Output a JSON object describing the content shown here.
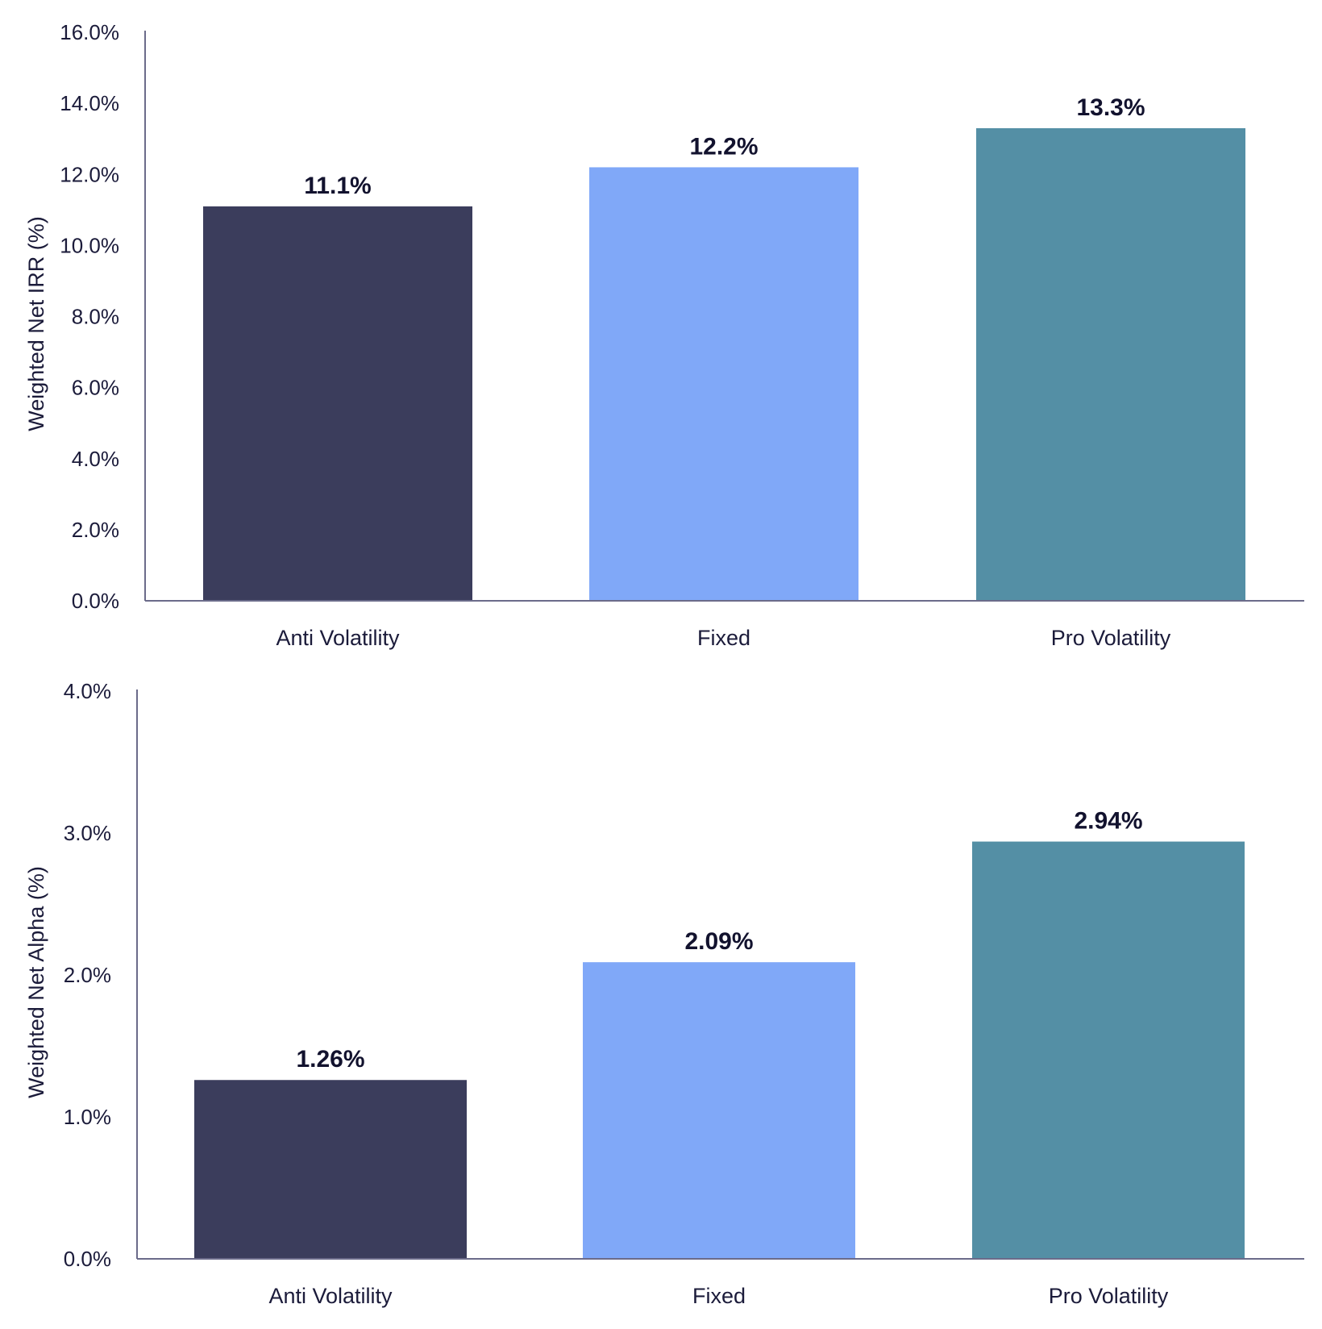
{
  "chart_data": [
    {
      "type": "bar",
      "categories": [
        "Anti Volatility",
        "Fixed",
        "Pro Volatility"
      ],
      "values": [
        11.1,
        12.2,
        13.3
      ],
      "data_labels": [
        "11.1%",
        "12.2%",
        "13.3%"
      ],
      "colors": [
        "#3b3d5c",
        "#80a8f8",
        "#548fa5"
      ],
      "title": "",
      "xlabel": "",
      "ylabel": "Weighted Net IRR (%)",
      "ylim": [
        0,
        16
      ],
      "yticks": [
        0,
        2,
        4,
        6,
        8,
        10,
        12,
        14,
        16
      ],
      "ytick_labels": [
        "0.0%",
        "2.0%",
        "4.0%",
        "6.0%",
        "8.0%",
        "10.0%",
        "12.0%",
        "14.0%",
        "16.0%"
      ],
      "grid": false,
      "legend": "none",
      "axis_color": "#6b6b8a"
    },
    {
      "type": "bar",
      "categories": [
        "Anti Volatility",
        "Fixed",
        "Pro Volatility"
      ],
      "values": [
        1.26,
        2.09,
        2.94
      ],
      "data_labels": [
        "1.26%",
        "2.09%",
        "2.94%"
      ],
      "colors": [
        "#3b3d5c",
        "#80a8f8",
        "#548fa5"
      ],
      "title": "",
      "xlabel": "",
      "ylabel": "Weighted Net Alpha (%)",
      "ylim": [
        0,
        4
      ],
      "yticks": [
        0,
        1,
        2,
        3,
        4
      ],
      "ytick_labels": [
        "0.0%",
        "1.0%",
        "2.0%",
        "3.0%",
        "4.0%"
      ],
      "grid": false,
      "legend": "none",
      "axis_color": "#6b6b8a"
    }
  ]
}
